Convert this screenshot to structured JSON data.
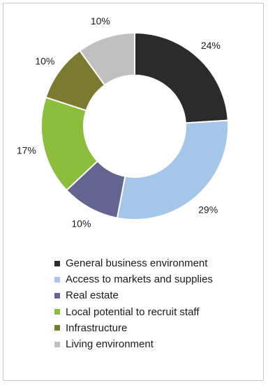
{
  "chart_data": {
    "type": "pie",
    "style": "donut",
    "legend_position": "bottom",
    "slices": [
      {
        "label": "General business environment",
        "value": 24,
        "label_text": "24%",
        "color": "#2b2b2b"
      },
      {
        "label": "Access to markets and supplies",
        "value": 29,
        "label_text": "29%",
        "color": "#a3c6e9"
      },
      {
        "label": "Real estate",
        "value": 10,
        "label_text": "10%",
        "color": "#646491"
      },
      {
        "label": "Local potential to recruit staff",
        "value": 17,
        "label_text": "17%",
        "color": "#8dbd3c"
      },
      {
        "label": "Infrastructure",
        "value": 10,
        "label_text": "10%",
        "color": "#7a7a30"
      },
      {
        "label": "Living environment",
        "value": 10,
        "label_text": "10%",
        "color": "#c0c0c0"
      }
    ]
  }
}
